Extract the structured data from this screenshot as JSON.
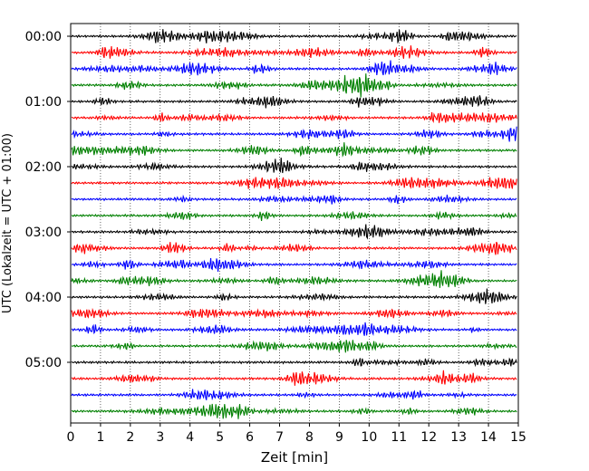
{
  "chart_data": {
    "type": "line",
    "title": "",
    "xlabel": "Zeit  [min]",
    "ylabel": "UTC (Lokalzeit = UTC + 01:00)",
    "xlim": [
      0,
      15
    ],
    "x_ticks": [
      "0",
      "1",
      "2",
      "3",
      "4",
      "5",
      "6",
      "7",
      "8",
      "9",
      "10",
      "11",
      "12",
      "13",
      "14",
      "15"
    ],
    "y_tick_labels": [
      "00:00",
      "01:00",
      "02:00",
      "03:00",
      "04:00",
      "05:00"
    ],
    "grid": "vertical dotted at each minute",
    "trace_colors": [
      "#000000",
      "#ff0000",
      "#0000ff",
      "#008000"
    ],
    "trace_count": 24,
    "trace_interval_minutes": 15
  }
}
